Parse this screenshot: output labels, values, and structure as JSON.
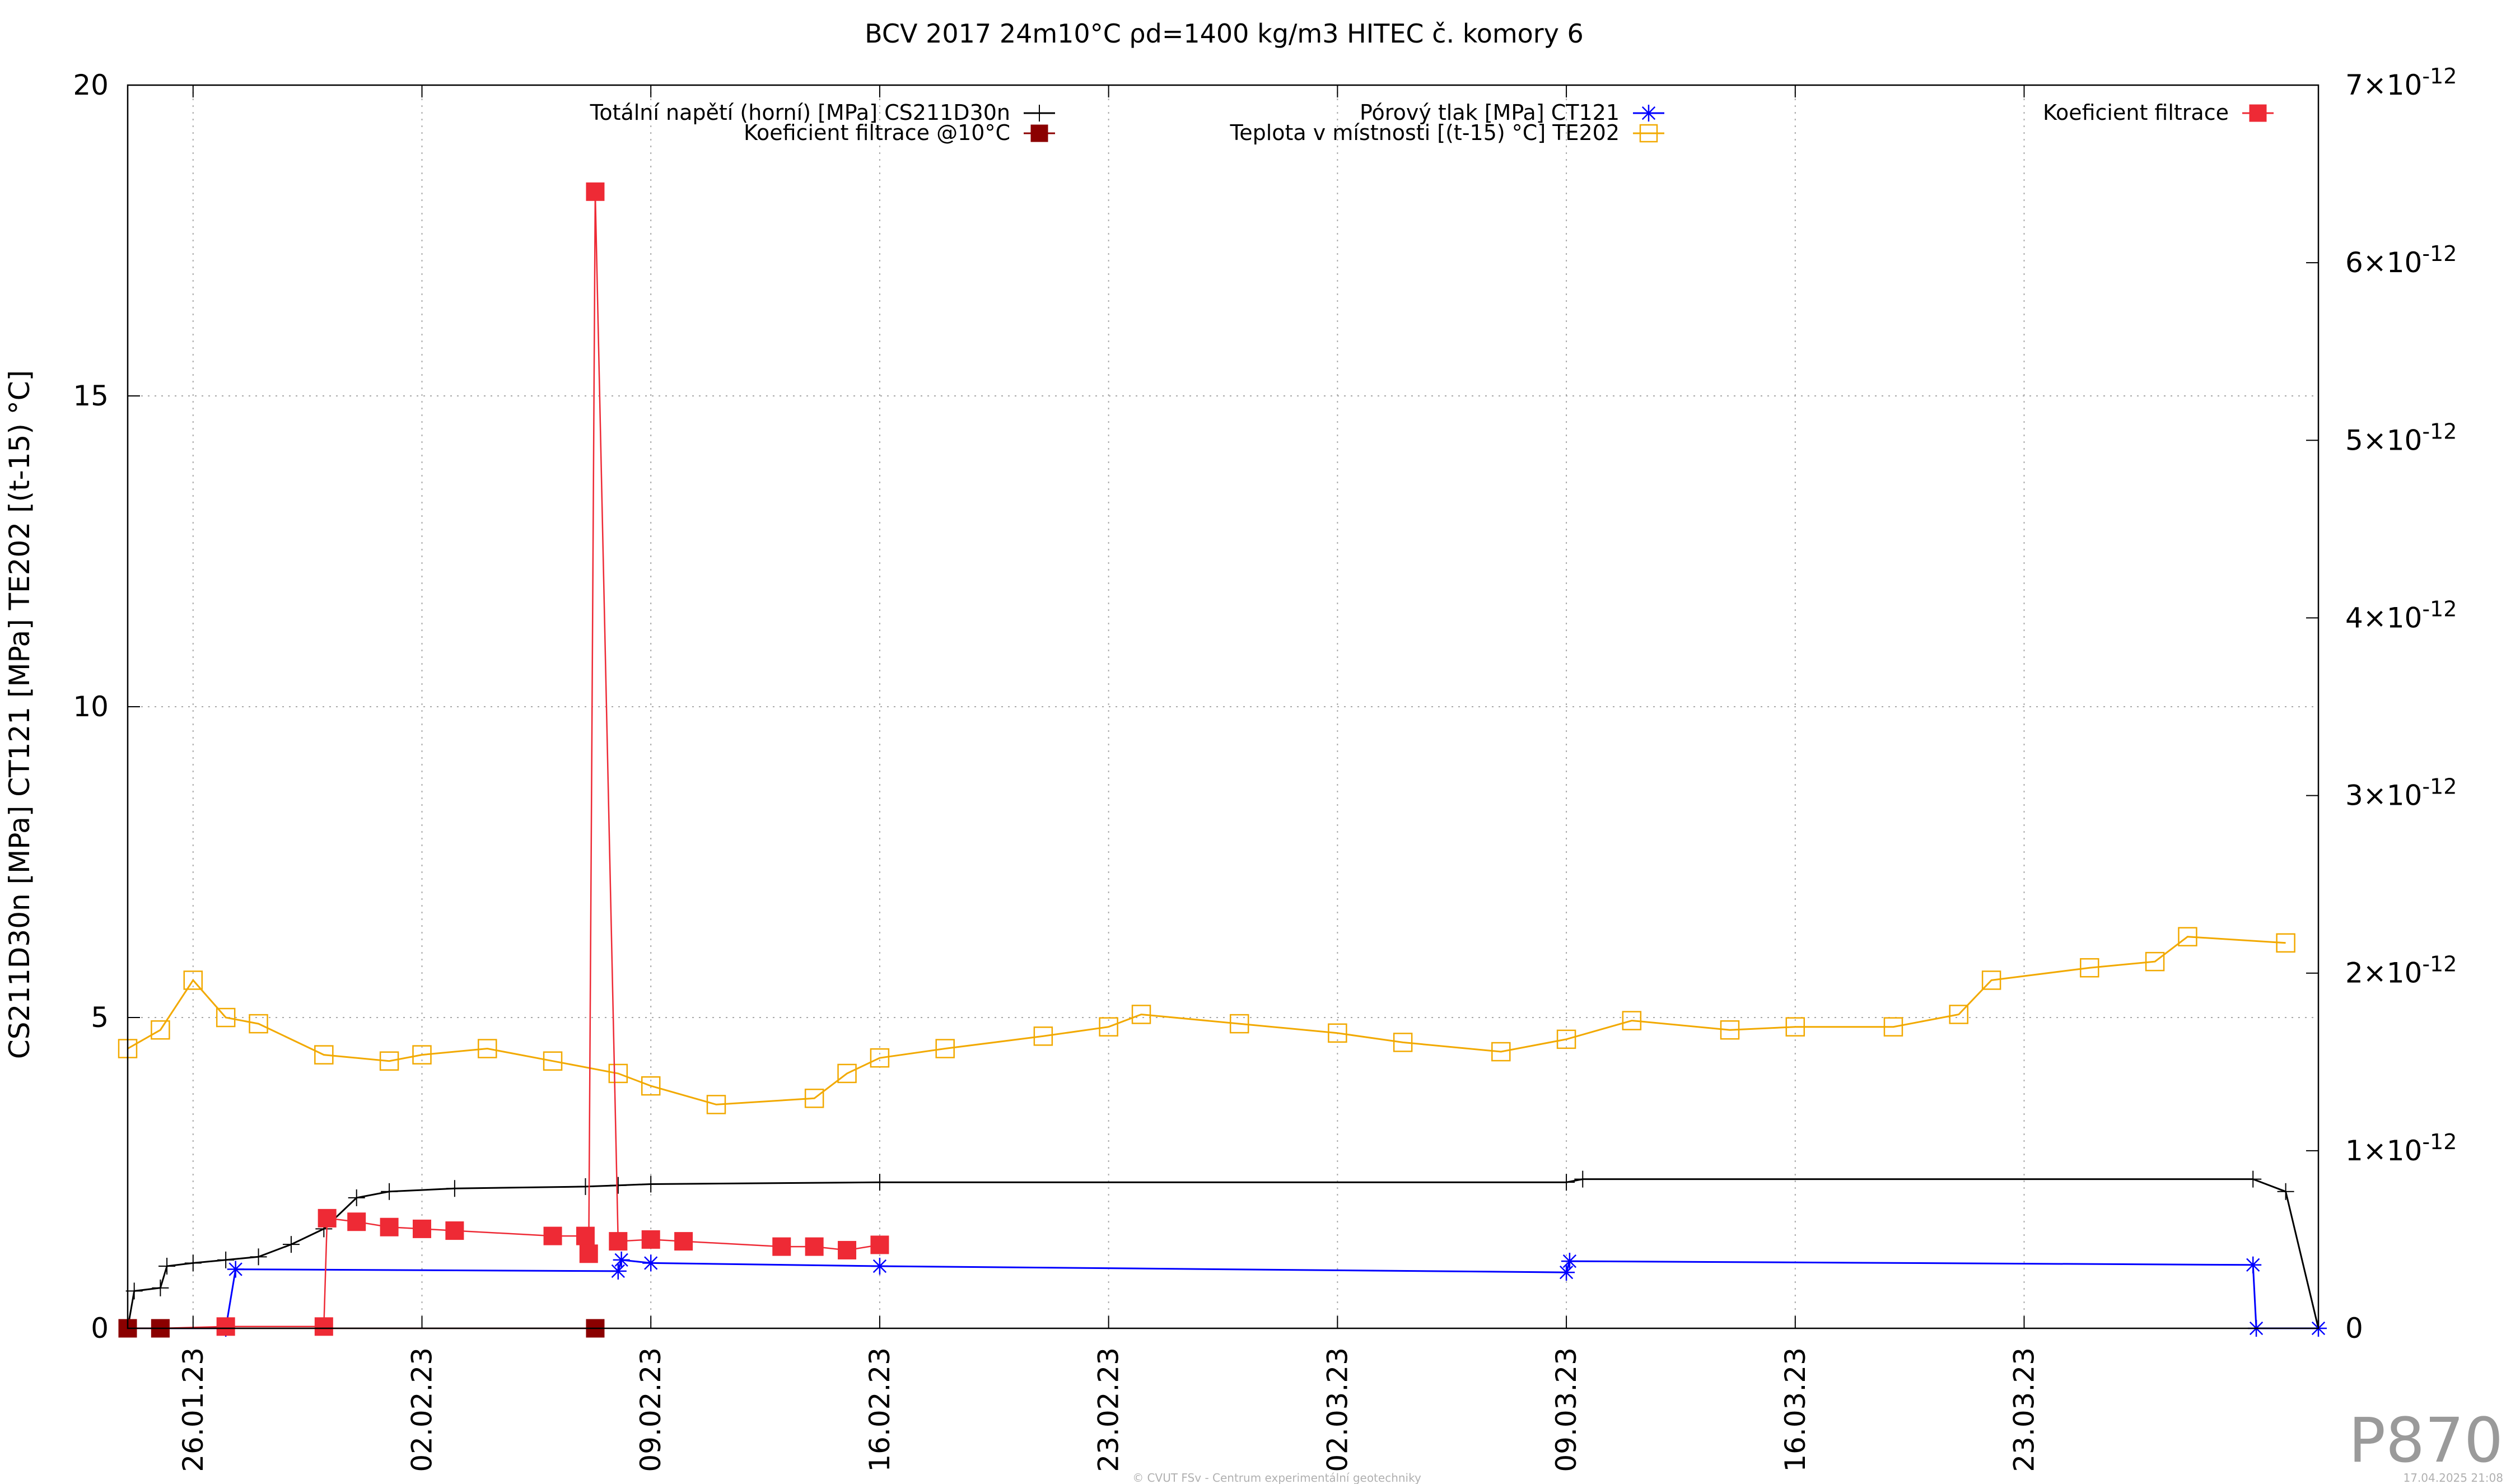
{
  "chart_data": {
    "type": "line",
    "title": "BCV 2017 24m10°C ρd=1400 kg/m3 HITEC č. komory 6",
    "ylabel": "CS211D30n [MPa] CT121 [MPa] TE202 [(t-15) °C]",
    "ylim": [
      0,
      20
    ],
    "y_ticks": [
      "0",
      "5",
      "10",
      "15",
      "20"
    ],
    "y2lim": [
      0,
      7e-12
    ],
    "y2_ticks": [
      {
        "mant": "0",
        "exp": ""
      },
      {
        "mant": "1×10",
        "exp": "-12"
      },
      {
        "mant": "2×10",
        "exp": "-12"
      },
      {
        "mant": "3×10",
        "exp": "-12"
      },
      {
        "mant": "4×10",
        "exp": "-12"
      },
      {
        "mant": "5×10",
        "exp": "-12"
      },
      {
        "mant": "6×10",
        "exp": "-12"
      },
      {
        "mant": "7×10",
        "exp": "-12"
      }
    ],
    "xlim": [
      "2023-01-24",
      "2023-04-01"
    ],
    "x_ticks": [
      {
        "label": "26.01.23",
        "date": "2023-01-26"
      },
      {
        "label": "02.02.23",
        "date": "2023-02-02"
      },
      {
        "label": "09.02.23",
        "date": "2023-02-09"
      },
      {
        "label": "16.02.23",
        "date": "2023-02-16"
      },
      {
        "label": "23.02.23",
        "date": "2023-02-23"
      },
      {
        "label": "02.03.23",
        "date": "2023-03-02"
      },
      {
        "label": "09.03.23",
        "date": "2023-03-09"
      },
      {
        "label": "16.03.23",
        "date": "2023-03-16"
      },
      {
        "label": "23.03.23",
        "date": "2023-03-23"
      }
    ],
    "grid": true,
    "legend_position": "top",
    "series": [
      {
        "name": "Totální napětí (horní) [MPa] CS211D30n",
        "axis": "y1",
        "color": "#000000",
        "marker": "plus",
        "points": [
          [
            "2023-01-24",
            0.0
          ],
          [
            "2023-01-24.2",
            0.6
          ],
          [
            "2023-01-25",
            0.65
          ],
          [
            "2023-01-25.2",
            1.0
          ],
          [
            "2023-01-26",
            1.05
          ],
          [
            "2023-01-27",
            1.1
          ],
          [
            "2023-01-28",
            1.15
          ],
          [
            "2023-01-29",
            1.35
          ],
          [
            "2023-01-30",
            1.6
          ],
          [
            "2023-01-31",
            2.1
          ],
          [
            "2023-02-01",
            2.2
          ],
          [
            "2023-02-03",
            2.25
          ],
          [
            "2023-02-07",
            2.28
          ],
          [
            "2023-02-08",
            2.3
          ],
          [
            "2023-02-09",
            2.32
          ],
          [
            "2023-02-16",
            2.35
          ],
          [
            "2023-03-09",
            2.35
          ],
          [
            "2023-03-09.5",
            2.4
          ],
          [
            "2023-03-30",
            2.4
          ],
          [
            "2023-03-31",
            2.2
          ],
          [
            "2023-04-01",
            0.0
          ]
        ]
      },
      {
        "name": "Pórový tlak [MPa] CT121",
        "axis": "y1",
        "color": "#0000ff",
        "marker": "star",
        "points": [
          [
            "2023-01-24",
            0.0
          ],
          [
            "2023-01-27",
            0.0
          ],
          [
            "2023-01-27.3",
            0.95
          ],
          [
            "2023-02-08",
            0.92
          ],
          [
            "2023-02-08.1",
            1.1
          ],
          [
            "2023-02-09",
            1.05
          ],
          [
            "2023-02-16",
            1.0
          ],
          [
            "2023-03-09",
            0.9
          ],
          [
            "2023-03-09.1",
            1.08
          ],
          [
            "2023-03-30",
            1.02
          ],
          [
            "2023-03-30.1",
            0.0
          ],
          [
            "2023-04-01",
            0.0
          ]
        ]
      },
      {
        "name": "Teplota v místnosti [(t-15) °C] TE202",
        "axis": "y1",
        "color": "#f2a900",
        "marker": "square-open",
        "points": [
          [
            "2023-01-24",
            4.5
          ],
          [
            "2023-01-25",
            4.8
          ],
          [
            "2023-01-26",
            5.6
          ],
          [
            "2023-01-27",
            5.0
          ],
          [
            "2023-01-28",
            4.9
          ],
          [
            "2023-01-30",
            4.4
          ],
          [
            "2023-02-01",
            4.3
          ],
          [
            "2023-02-02",
            4.4
          ],
          [
            "2023-02-04",
            4.5
          ],
          [
            "2023-02-06",
            4.3
          ],
          [
            "2023-02-08",
            4.1
          ],
          [
            "2023-02-09",
            3.9
          ],
          [
            "2023-02-11",
            3.6
          ],
          [
            "2023-02-14",
            3.7
          ],
          [
            "2023-02-15",
            4.1
          ],
          [
            "2023-02-16",
            4.35
          ],
          [
            "2023-02-18",
            4.5
          ],
          [
            "2023-02-21",
            4.7
          ],
          [
            "2023-02-23",
            4.85
          ],
          [
            "2023-02-24",
            5.05
          ],
          [
            "2023-02-27",
            4.9
          ],
          [
            "2023-03-02",
            4.75
          ],
          [
            "2023-03-04",
            4.6
          ],
          [
            "2023-03-07",
            4.45
          ],
          [
            "2023-03-09",
            4.65
          ],
          [
            "2023-03-11",
            4.95
          ],
          [
            "2023-03-14",
            4.8
          ],
          [
            "2023-03-16",
            4.85
          ],
          [
            "2023-03-19",
            4.85
          ],
          [
            "2023-03-21",
            5.05
          ],
          [
            "2023-03-22",
            5.6
          ],
          [
            "2023-03-25",
            5.8
          ],
          [
            "2023-03-27",
            5.9
          ],
          [
            "2023-03-28",
            6.3
          ],
          [
            "2023-03-31",
            6.2
          ]
        ]
      },
      {
        "name": "Koeficient filtrace",
        "axis": "y2",
        "color": "#ee2a35",
        "marker": "square-filled",
        "points": [
          [
            "2023-01-24",
            0.0
          ],
          [
            "2023-01-25",
            0.0
          ],
          [
            "2023-01-27",
            1e-14
          ],
          [
            "2023-01-30",
            1e-14
          ],
          [
            "2023-01-30.1",
            6.2e-13
          ],
          [
            "2023-01-31",
            6e-13
          ],
          [
            "2023-02-01",
            5.7e-13
          ],
          [
            "2023-02-02",
            5.6e-13
          ],
          [
            "2023-02-03",
            5.5e-13
          ],
          [
            "2023-02-06",
            5.2e-13
          ],
          [
            "2023-02-07",
            5.2e-13
          ],
          [
            "2023-02-07.1",
            4.2e-13
          ],
          [
            "2023-02-07.3",
            6.4e-12
          ],
          [
            "2023-02-08",
            4.9e-13
          ],
          [
            "2023-02-09",
            5e-13
          ],
          [
            "2023-02-10",
            4.9e-13
          ],
          [
            "2023-02-13",
            4.6e-13
          ],
          [
            "2023-02-14",
            4.6e-13
          ],
          [
            "2023-02-15",
            4.4e-13
          ],
          [
            "2023-02-16",
            4.7e-13
          ]
        ]
      },
      {
        "name": "Koeficient filtrace @10°C",
        "axis": "y2",
        "color": "#8b0000",
        "marker": "square-filled",
        "points": [
          [
            "2023-01-24",
            0.0
          ],
          [
            "2023-01-25",
            0.0
          ],
          [
            "2023-02-07.3",
            0.0
          ]
        ]
      }
    ]
  },
  "footer": {
    "page_code": "P870",
    "credit": "© CVUT FSv - Centrum experimentální geotechniky",
    "timestamp": "17.04.2025 21:08"
  }
}
